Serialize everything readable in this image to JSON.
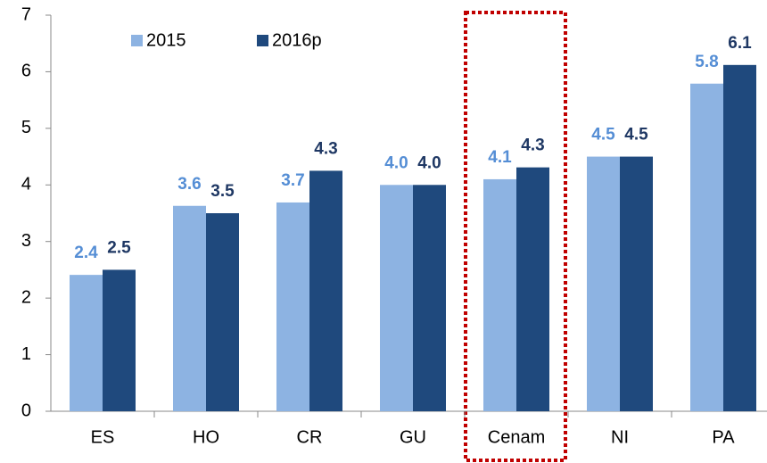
{
  "chart_data": {
    "type": "bar",
    "categories": [
      "ES",
      "HO",
      "CR",
      "GU",
      "Cenam",
      "NI",
      "PA"
    ],
    "series": [
      {
        "name": "2015",
        "color": "#8db3e2",
        "label_color": "#558ed5",
        "values": [
          2.41,
          3.63,
          3.69,
          4.0,
          4.1,
          4.5,
          5.79
        ],
        "value_labels": [
          "2.4",
          "3.6",
          "3.7",
          "4.0",
          "4.1",
          "4.5",
          "5.8"
        ]
      },
      {
        "name": "2016p",
        "color": "#1f497d",
        "label_color": "#1f3864",
        "values": [
          2.5,
          3.5,
          4.25,
          4.0,
          4.31,
          4.5,
          6.12
        ],
        "value_labels": [
          "2.5",
          "3.5",
          "4.3",
          "4.0",
          "4.3",
          "4.5",
          "6.1"
        ]
      }
    ],
    "ylim": [
      0,
      7
    ],
    "yticks": [
      0,
      1,
      2,
      3,
      4,
      5,
      6,
      7
    ],
    "grid": false,
    "legend": "top-left"
  }
}
